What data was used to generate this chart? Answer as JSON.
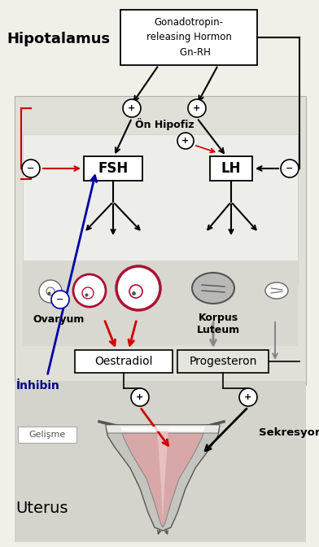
{
  "bg_color": "#f0efe8",
  "inner_bg": "#e0dfd8",
  "inner_white_bg": "#ededea",
  "ovary_bg": "#d8d7d0",
  "uterus_bg": "#d5d4cc",
  "hipotalamus_label": "Hipotalamus",
  "gnrh_text": "Gonadotropin-\nreleasing Hormon\n    Gn-RH",
  "hypofiz_label": "Ön Hipofiz",
  "fsh_label": "FSH",
  "lh_label": "LH",
  "oestradiol_label": "Oestradiol",
  "progesteron_label": "Progesteron",
  "ovaryum_label": "Ovaryum",
  "korpus_label": "Korpus\nLuteum",
  "inhibin_label": "İnhibin",
  "gelisme_label": "Gelişme",
  "sekresyon_label": "Sekresyon",
  "uterus_label": "Uterus"
}
